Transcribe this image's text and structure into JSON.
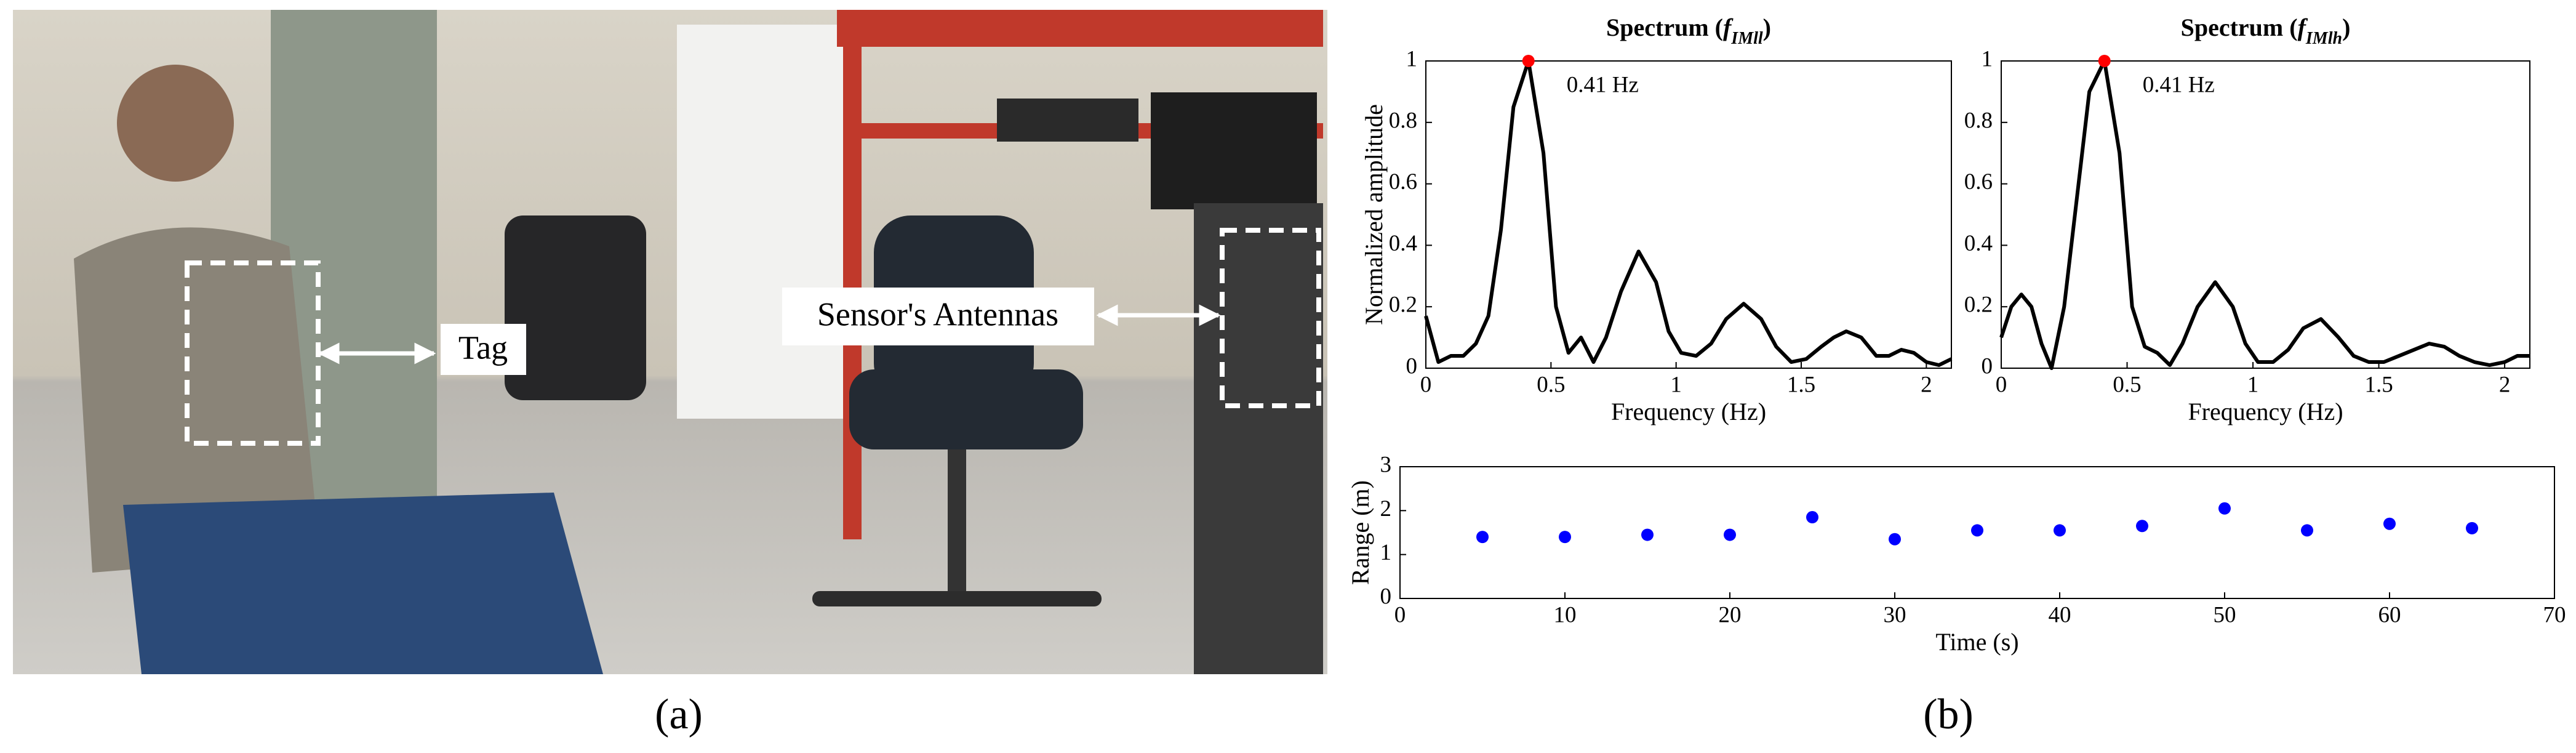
{
  "photo": {
    "labels": [
      "Tag",
      "Sensor's Antennas"
    ]
  },
  "captions": [
    "(a)",
    "(b)"
  ],
  "chart_data": [
    {
      "type": "line",
      "title": [
        "Spectrum (",
        "f",
        "IMll",
        ")"
      ],
      "xlabel": "Frequency (Hz)",
      "ylabel": "Normalized amplitude",
      "x": [
        0,
        0.05,
        0.1,
        0.15,
        0.2,
        0.25,
        0.3,
        0.35,
        0.41,
        0.47,
        0.52,
        0.57,
        0.62,
        0.67,
        0.72,
        0.78,
        0.85,
        0.92,
        0.97,
        1.02,
        1.08,
        1.14,
        1.2,
        1.27,
        1.34,
        1.4,
        1.46,
        1.52,
        1.58,
        1.63,
        1.68,
        1.74,
        1.8,
        1.85,
        1.9,
        1.95,
        2.0,
        2.05,
        2.1
      ],
      "series": [
        {
          "color": "#000000",
          "values": [
            0.17,
            0.02,
            0.04,
            0.04,
            0.08,
            0.17,
            0.45,
            0.85,
            1.0,
            0.7,
            0.2,
            0.05,
            0.1,
            0.02,
            0.1,
            0.25,
            0.38,
            0.28,
            0.12,
            0.05,
            0.04,
            0.08,
            0.16,
            0.21,
            0.16,
            0.07,
            0.02,
            0.03,
            0.07,
            0.1,
            0.12,
            0.1,
            0.04,
            0.04,
            0.06,
            0.05,
            0.02,
            0.01,
            0.03
          ]
        }
      ],
      "annotation": {
        "text": "0.41 Hz",
        "x": 0.41,
        "y": 1,
        "color": "#ff0000"
      },
      "xlim": [
        0,
        2.1
      ],
      "xticks": [
        0,
        0.5,
        1,
        1.5,
        2
      ],
      "ylim": [
        0,
        1
      ],
      "yticks": [
        0,
        0.2,
        0.4,
        0.6,
        0.8,
        1
      ]
    },
    {
      "type": "line",
      "title": [
        "Spectrum (",
        "f",
        "IMlh",
        ")"
      ],
      "xlabel": "Frequency (Hz)",
      "x": [
        0,
        0.04,
        0.08,
        0.12,
        0.16,
        0.2,
        0.25,
        0.3,
        0.35,
        0.41,
        0.47,
        0.52,
        0.57,
        0.62,
        0.67,
        0.72,
        0.78,
        0.85,
        0.92,
        0.97,
        1.02,
        1.08,
        1.14,
        1.2,
        1.27,
        1.34,
        1.4,
        1.46,
        1.52,
        1.58,
        1.64,
        1.7,
        1.76,
        1.82,
        1.88,
        1.94,
        2.0,
        2.05,
        2.1
      ],
      "series": [
        {
          "color": "#000000",
          "values": [
            0.1,
            0.2,
            0.24,
            0.2,
            0.08,
            0.0,
            0.2,
            0.55,
            0.9,
            1.0,
            0.7,
            0.2,
            0.07,
            0.05,
            0.01,
            0.08,
            0.2,
            0.28,
            0.2,
            0.08,
            0.02,
            0.02,
            0.06,
            0.13,
            0.16,
            0.1,
            0.04,
            0.02,
            0.02,
            0.04,
            0.06,
            0.08,
            0.07,
            0.04,
            0.02,
            0.01,
            0.02,
            0.04,
            0.04
          ]
        }
      ],
      "annotation": {
        "text": "0.41 Hz",
        "x": 0.41,
        "y": 1,
        "color": "#ff0000"
      },
      "xlim": [
        0,
        2.1
      ],
      "xticks": [
        0,
        0.5,
        1,
        1.5,
        2
      ],
      "ylim": [
        0,
        1
      ],
      "yticks": [
        0,
        0.2,
        0.4,
        0.6,
        0.8,
        1
      ]
    },
    {
      "type": "scatter",
      "xlabel": "Time (s)",
      "ylabel": "Range (m)",
      "x": [
        5,
        10,
        15,
        20,
        25,
        30,
        35,
        40,
        45,
        50,
        55,
        60,
        65
      ],
      "series": [
        {
          "color": "#0000ff",
          "values": [
            1.4,
            1.4,
            1.45,
            1.45,
            1.85,
            1.35,
            1.55,
            1.55,
            1.65,
            2.05,
            1.55,
            1.7,
            1.6
          ]
        }
      ],
      "xlim": [
        0,
        70
      ],
      "xticks": [
        0,
        10,
        20,
        30,
        40,
        50,
        60,
        70
      ],
      "ylim": [
        0,
        3
      ],
      "yticks": [
        0,
        1,
        2,
        3
      ]
    }
  ]
}
